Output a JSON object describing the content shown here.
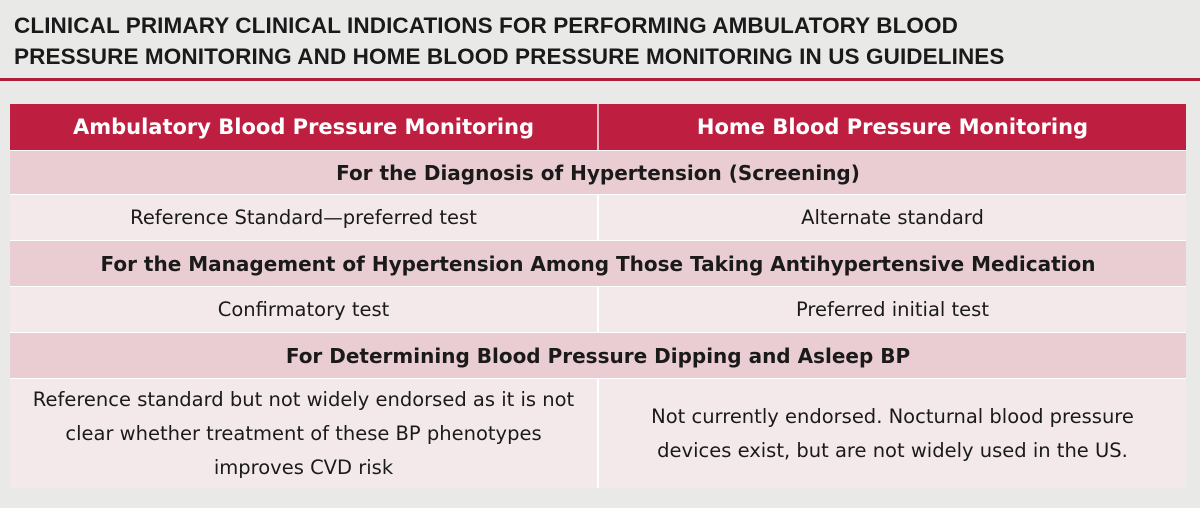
{
  "title": {
    "line1": "CLINICAL PRIMARY CLINICAL INDICATIONS FOR PERFORMING AMBULATORY BLOOD",
    "line2": "PRESSURE MONITORING AND HOME BLOOD PRESSURE MONITORING IN US GUIDELINES"
  },
  "table": {
    "headers": [
      "Ambulatory Blood Pressure Monitoring",
      "Home Blood Pressure Monitoring"
    ],
    "sections": [
      {
        "heading": "For the Diagnosis of Hypertension (Screening)",
        "left": "Reference Standard—preferred test",
        "right": "Alternate standard"
      },
      {
        "heading": "For the Management of Hypertension Among Those Taking Antihypertensive Medication",
        "left": "Confirmatory test",
        "right": "Preferred initial test"
      },
      {
        "heading": "For Determining Blood Pressure Dipping and Asleep BP",
        "left": "Reference standard but not widely endorsed as it is not clear whether treatment of these BP phenotypes improves CVD risk",
        "right": "Not currently endorsed. Nocturnal blood pressure devices exist, but are not widely used in the US."
      }
    ]
  },
  "colors": {
    "accent": "#be1e3f",
    "rule": "#b01d37",
    "section_bg": "#e9cdd2",
    "cell_bg": "#f4e9ea",
    "page_bg": "#e9e9e8"
  }
}
